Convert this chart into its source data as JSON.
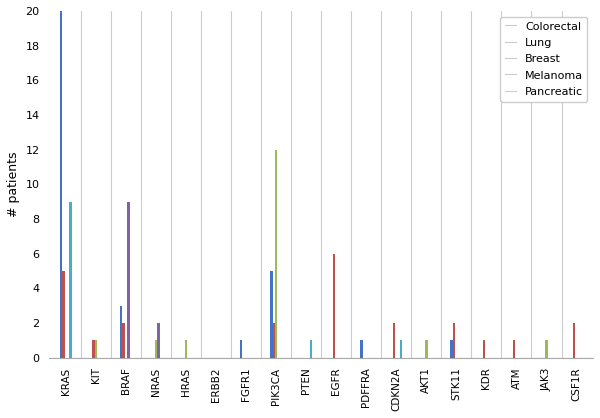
{
  "categories": [
    "KRAS",
    "KIT",
    "BRAF",
    "NRAS",
    "HRAS",
    "ERBB2",
    "FGFR1",
    "PIK3CA",
    "PTEN",
    "EGFR",
    "PDFFRA",
    "CDKN2A",
    "AKT1",
    "STK11",
    "KDR",
    "ATM",
    "JAK3",
    "CSF1R"
  ],
  "series": {
    "Colorectal": [
      20,
      0,
      3,
      0,
      0,
      0,
      1,
      5,
      0,
      0,
      1,
      0,
      0,
      1,
      0,
      0,
      0,
      0
    ],
    "Lung": [
      5,
      1,
      2,
      0,
      0,
      0,
      0,
      2,
      0,
      6,
      0,
      2,
      0,
      2,
      1,
      1,
      0,
      2
    ],
    "Breast": [
      0,
      1,
      0,
      1,
      1,
      0,
      0,
      12,
      0,
      0,
      0,
      0,
      1,
      0,
      0,
      0,
      1,
      0
    ],
    "Melanoma": [
      0,
      0,
      9,
      2,
      0,
      0,
      0,
      0,
      0,
      0,
      0,
      0,
      0,
      0,
      0,
      0,
      0,
      0
    ],
    "Pancreatic": [
      9,
      0,
      0,
      0,
      0,
      0,
      0,
      0,
      1,
      0,
      0,
      1,
      0,
      0,
      0,
      0,
      0,
      0
    ]
  },
  "colors": {
    "Colorectal": "#4472C4",
    "Lung": "#C0504D",
    "Breast": "#9BBB59",
    "Melanoma": "#8064A2",
    "Pancreatic": "#4BACC6"
  },
  "ylabel": "# patients",
  "ylim": [
    0,
    20
  ],
  "yticks": [
    0,
    2,
    4,
    6,
    8,
    10,
    12,
    14,
    16,
    18,
    20
  ],
  "background_color": "#FFFFFF",
  "grid_color": "#CCCCCC",
  "bar_width": 0.08,
  "figsize": [
    6.0,
    4.18
  ],
  "dpi": 100
}
